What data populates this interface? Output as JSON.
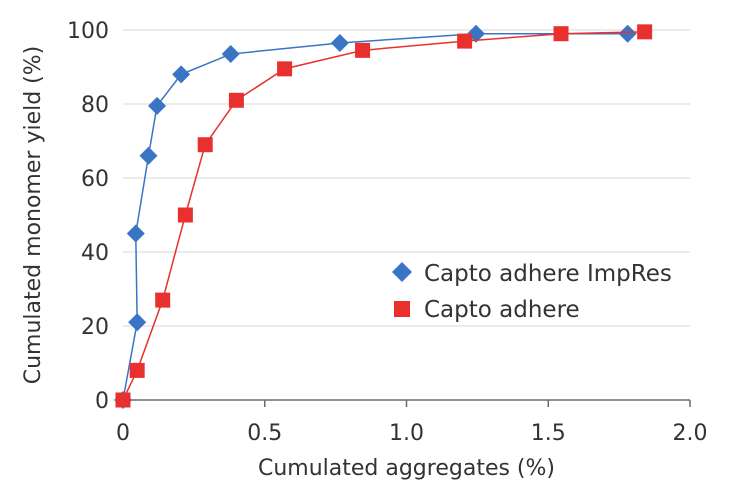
{
  "chart_data": {
    "type": "line",
    "xlabel": "Cumulated aggregates (%)",
    "ylabel": "Cumulated monomer yield (%)",
    "xlim": [
      0,
      2.0
    ],
    "ylim": [
      0,
      100
    ],
    "x_ticks": [
      0,
      0.5,
      1.0,
      1.5,
      2.0
    ],
    "x_tick_labels": [
      "0",
      "0.5",
      "1.0",
      "1.5",
      "2.0"
    ],
    "y_ticks": [
      0,
      20,
      40,
      60,
      80,
      100
    ],
    "y_tick_labels": [
      "0",
      "20",
      "40",
      "60",
      "80",
      "100"
    ],
    "grid": "horizontal",
    "legend_position": "right",
    "series": [
      {
        "name": "Capto adhere ImpRes",
        "color": "#3a74c4",
        "marker": "diamond",
        "x": [
          0.0,
          0.05,
          0.045,
          0.09,
          0.12,
          0.205,
          0.38,
          0.765,
          1.245,
          1.78
        ],
        "y": [
          0,
          21,
          45,
          66,
          79.5,
          88,
          93.5,
          96.5,
          99,
          99
        ]
      },
      {
        "name": "Capto adhere",
        "color": "#e8302f",
        "marker": "square",
        "x": [
          0.0,
          0.05,
          0.14,
          0.22,
          0.29,
          0.4,
          0.57,
          0.845,
          1.205,
          1.545,
          1.84
        ],
        "y": [
          0,
          8,
          27,
          50,
          69,
          81,
          89.5,
          94.5,
          97,
          99,
          99.5
        ]
      }
    ]
  }
}
